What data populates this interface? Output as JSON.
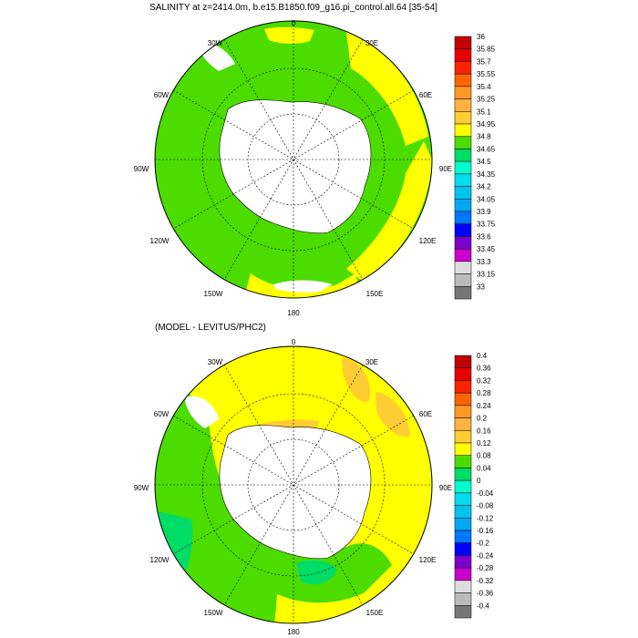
{
  "panels": [
    {
      "title": "SALINITY at z=2414.0m, b.e15.B1850.f09_g16.pi_control.all.64 [35-54]",
      "lon_labels": [
        "0",
        "30E",
        "60E",
        "90E",
        "120E",
        "150E",
        "180",
        "150W",
        "120W",
        "90W",
        "60W",
        "30W"
      ],
      "colorbar": {
        "labels": [
          "36",
          "35.85",
          "35.7",
          "35.55",
          "35.4",
          "35.25",
          "35.1",
          "34.95",
          "34.8",
          "34.65",
          "34.5",
          "34.35",
          "34.2",
          "34.05",
          "33.9",
          "33.75",
          "33.6",
          "33.45",
          "33.3",
          "33.15",
          "33"
        ],
        "colors": [
          "#c00000",
          "#e80000",
          "#ff2200",
          "#ff6600",
          "#ff9922",
          "#ffb340",
          "#ffcc33",
          "#ffff00",
          "#4cdc00",
          "#00dd66",
          "#00ffcc",
          "#00ddee",
          "#00c4f0",
          "#00a8f4",
          "#0077ff",
          "#0000ff",
          "#7a00cc",
          "#cc00cc",
          "#dddddd",
          "#bbbbbb",
          "#777777"
        ]
      }
    },
    {
      "title": "(MODEL - LEVITUS/PHC2)",
      "lon_labels": [
        "0",
        "30E",
        "60E",
        "90E",
        "120E",
        "150E",
        "180",
        "150W",
        "120W",
        "90W",
        "60W",
        "30W"
      ],
      "colorbar": {
        "labels": [
          "0.4",
          "0.36",
          "0.32",
          "0.28",
          "0.24",
          "0.2",
          "0.16",
          "0.12",
          "0.08",
          "0.04",
          "0",
          "-0.04",
          "-0.08",
          "-0.12",
          "-0.16",
          "-0.2",
          "-0.24",
          "-0.28",
          "-0.32",
          "-0.36",
          "-0.4"
        ],
        "colors": [
          "#c00000",
          "#e80000",
          "#ff2200",
          "#ff6600",
          "#ff9922",
          "#ffb340",
          "#ffcc33",
          "#ffff00",
          "#4cdc00",
          "#00dd66",
          "#00ffcc",
          "#00ddee",
          "#00c4f0",
          "#00a8f4",
          "#0077ff",
          "#0000ff",
          "#7a00cc",
          "#cc00cc",
          "#dddddd",
          "#bbbbbb",
          "#777777"
        ]
      }
    }
  ]
}
